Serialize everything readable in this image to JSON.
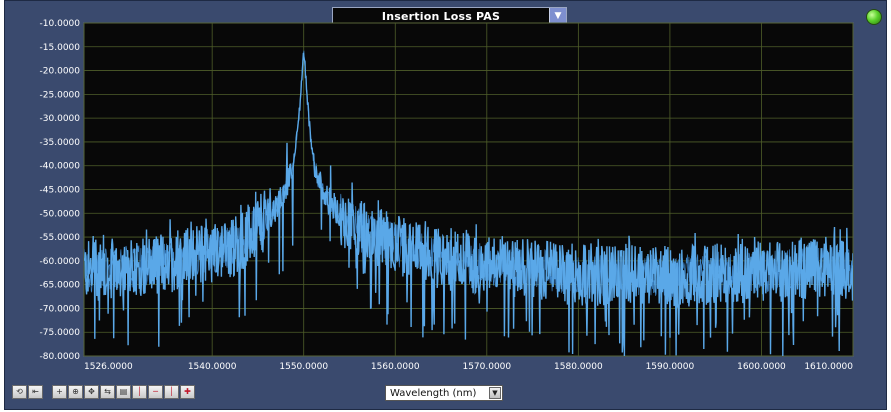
{
  "header": {
    "measurement_select": "Insertion Loss PAS",
    "select_arrow": "▼"
  },
  "status": {
    "led_color": "#5bd12b"
  },
  "footer": {
    "xaxis_select": "Wavelength (nm)",
    "xaxis_arrow": "▼",
    "toolbar_icons": [
      "zoom-reset-icon",
      "zoom-previous-icon",
      "crosshair-icon",
      "zoom-box-icon",
      "pan-icon",
      "marker-icon",
      "grid-icon",
      "marker-a-icon",
      "marker-line-icon",
      "marker-b-icon",
      "marker-add-icon"
    ]
  },
  "chart_data": {
    "type": "line",
    "title": "Insertion Loss PAS",
    "xlabel": "Wavelength (nm)",
    "ylabel": "",
    "xlim": [
      1526,
      1610
    ],
    "ylim": [
      -80,
      -10
    ],
    "grid": true,
    "line_color": "#5aa8e8",
    "background": "#080808",
    "grid_color": "#4f5e2a",
    "x_ticks": [
      1526,
      1540,
      1550,
      1560,
      1570,
      1580,
      1590,
      1600,
      1610
    ],
    "x_tick_labels": [
      "1526.0000",
      "1540.0000",
      "1550.0000",
      "1560.0000",
      "1570.0000",
      "1580.0000",
      "1590.0000",
      "1600.0000",
      "1610.0000"
    ],
    "y_ticks": [
      -10,
      -15,
      -20,
      -25,
      -30,
      -35,
      -40,
      -45,
      -50,
      -55,
      -60,
      -65,
      -70,
      -75,
      -80
    ],
    "y_tick_labels": [
      "-10.0000",
      "-15.0000",
      "-20.0000",
      "-25.0000",
      "-30.0000",
      "-35.0000",
      "-40.0000",
      "-45.0000",
      "-50.0000",
      "-55.0000",
      "-60.0000",
      "-65.0000",
      "-70.0000",
      "-75.0000",
      "-80.0000"
    ],
    "series": [
      {
        "x": [
          1526,
          1528,
          1530,
          1532,
          1534,
          1536,
          1538,
          1540,
          1542,
          1543,
          1544,
          1545,
          1546,
          1547,
          1548,
          1548.5,
          1549,
          1549.3,
          1549.6,
          1549.8,
          1550,
          1550.3,
          1550.6,
          1551,
          1551.5,
          1552,
          1553,
          1554,
          1555,
          1556,
          1558,
          1560,
          1562,
          1565,
          1568,
          1570,
          1573,
          1576,
          1580,
          1583,
          1586,
          1590,
          1593,
          1596,
          1600,
          1603,
          1606,
          1608,
          1610
        ],
        "y": [
          -62,
          -62,
          -61.5,
          -61,
          -60.5,
          -60,
          -59,
          -58,
          -57,
          -56,
          -54.5,
          -53,
          -51,
          -48.5,
          -45,
          -42,
          -38,
          -33,
          -27,
          -21,
          -16,
          -23,
          -31,
          -38,
          -42,
          -45,
          -48,
          -50,
          -52,
          -53.5,
          -55,
          -56.5,
          -58,
          -59.5,
          -60.5,
          -61,
          -61.5,
          -62,
          -63,
          -63,
          -62.5,
          -63.5,
          -63,
          -62.5,
          -62.5,
          -62,
          -61,
          -61.5,
          -62
        ]
      }
    ]
  }
}
